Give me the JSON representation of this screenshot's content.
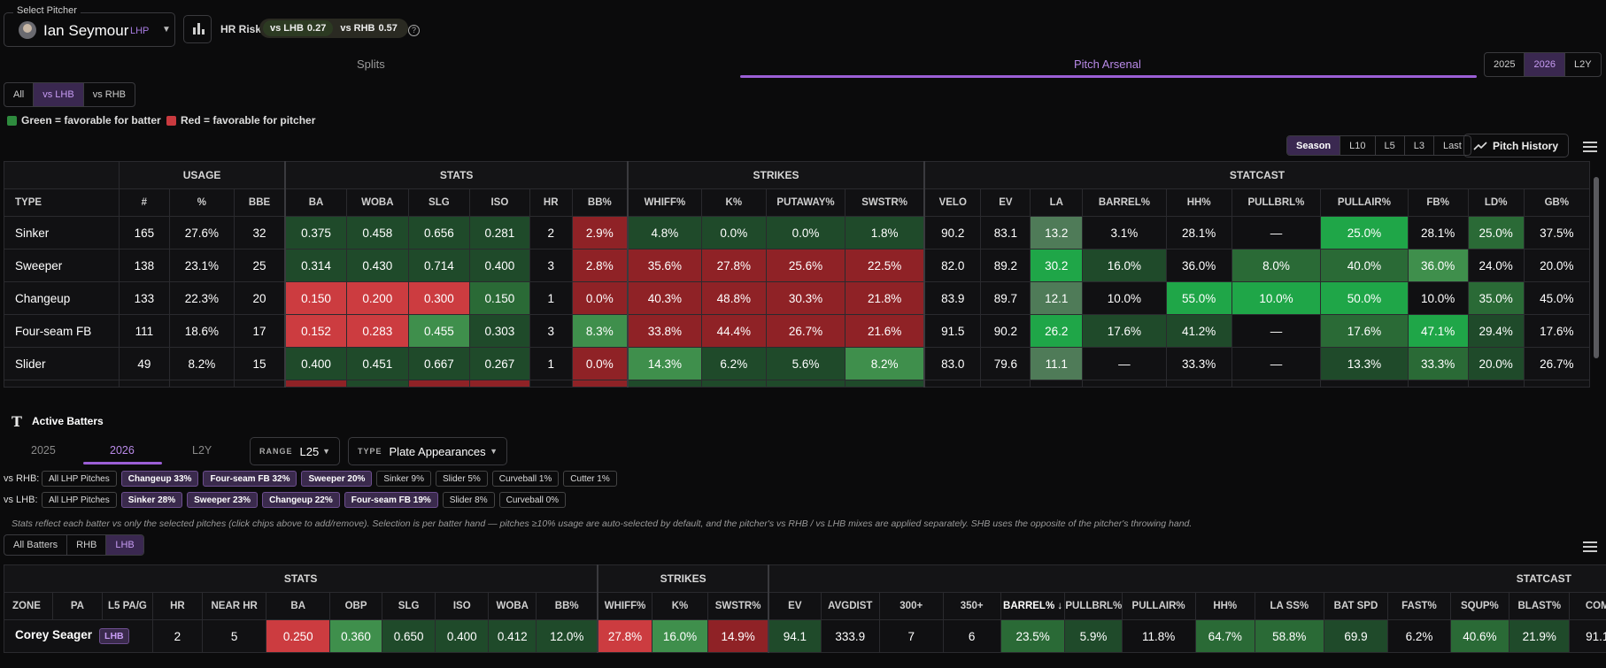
{
  "selector": {
    "legend": "Select Pitcher",
    "name": "Ian Seymour",
    "hand": "LHP"
  },
  "hr_risk": {
    "label": "HR Risk",
    "lhb_label": "vs LHB",
    "lhb_value": "0.27",
    "rhb_label": "vs RHB",
    "rhb_value": "0.57",
    "help": "?"
  },
  "tabs": {
    "splits": "Splits",
    "arsenal": "Pitch Arsenal"
  },
  "years": [
    "2025",
    "2026",
    "L2Y"
  ],
  "hand_filter": [
    "All",
    "vs LHB",
    "vs RHB"
  ],
  "legend": {
    "green": "Green = favorable for batter",
    "red": "Red = favorable for pitcher",
    "green_color": "#2e8b3e",
    "red_color": "#c93a3f"
  },
  "windows": [
    "Season",
    "L10",
    "L5",
    "L3",
    "Last"
  ],
  "pitch_history": "Pitch History",
  "arsenal": {
    "groups": [
      "USAGE",
      "STATS",
      "STRIKES",
      "STATCAST"
    ],
    "headers": [
      "TYPE",
      "#",
      "%",
      "BBE",
      "BA",
      "WOBA",
      "SLG",
      "ISO",
      "HR",
      "BB%",
      "WHIFF%",
      "K%",
      "PUTAWAY%",
      "SWSTR%",
      "VELO",
      "EV",
      "LA",
      "BARREL%",
      "HH%",
      "PULLBRL%",
      "PULLAIR%",
      "FB%",
      "LD%",
      "GB%"
    ],
    "rows": [
      [
        "Sinker",
        "165",
        "27.6%",
        "32",
        "0.375",
        "0.458",
        "0.656",
        "0.281",
        "2",
        "2.9%",
        "4.8%",
        "0.0%",
        "0.0%",
        "1.8%",
        "90.2",
        "83.1",
        "13.2",
        "3.1%",
        "28.1%",
        "—",
        "25.0%",
        "28.1%",
        "25.0%",
        "37.5%"
      ],
      [
        "Sweeper",
        "138",
        "23.1%",
        "25",
        "0.314",
        "0.430",
        "0.714",
        "0.400",
        "3",
        "2.8%",
        "35.6%",
        "27.8%",
        "25.6%",
        "22.5%",
        "82.0",
        "89.2",
        "30.2",
        "16.0%",
        "36.0%",
        "8.0%",
        "40.0%",
        "36.0%",
        "24.0%",
        "20.0%"
      ],
      [
        "Changeup",
        "133",
        "22.3%",
        "20",
        "0.150",
        "0.200",
        "0.300",
        "0.150",
        "1",
        "0.0%",
        "40.3%",
        "48.8%",
        "30.3%",
        "21.8%",
        "83.9",
        "89.7",
        "12.1",
        "10.0%",
        "55.0%",
        "10.0%",
        "50.0%",
        "10.0%",
        "35.0%",
        "45.0%"
      ],
      [
        "Four-seam FB",
        "111",
        "18.6%",
        "17",
        "0.152",
        "0.283",
        "0.455",
        "0.303",
        "3",
        "8.3%",
        "33.8%",
        "44.4%",
        "26.7%",
        "21.6%",
        "91.5",
        "90.2",
        "26.2",
        "17.6%",
        "41.2%",
        "—",
        "17.6%",
        "47.1%",
        "29.4%",
        "17.6%"
      ],
      [
        "Slider",
        "49",
        "8.2%",
        "15",
        "0.400",
        "0.451",
        "0.667",
        "0.267",
        "1",
        "0.0%",
        "14.3%",
        "6.2%",
        "5.6%",
        "8.2%",
        "83.0",
        "79.6",
        "11.1",
        "—",
        "33.3%",
        "—",
        "13.3%",
        "33.3%",
        "20.0%",
        "26.7%"
      ]
    ]
  },
  "batters": {
    "title": "Active Batters",
    "years": [
      "2025",
      "2026",
      "L2Y"
    ],
    "range_key": "RANGE",
    "range_val": "L25",
    "type_key": "TYPE",
    "type_val": "Plate Appearances",
    "rhb_label": "vs RHB:",
    "rhb_chips": [
      "All LHP Pitches",
      "Changeup 33%",
      "Four-seam FB 32%",
      "Sweeper 20%",
      "Sinker 9%",
      "Slider 5%",
      "Curveball 1%",
      "Cutter 1%"
    ],
    "lhb_label": "vs LHB:",
    "lhb_chips": [
      "All LHP Pitches",
      "Sinker 28%",
      "Sweeper 23%",
      "Changeup 22%",
      "Four-seam FB 19%",
      "Slider 8%",
      "Curveball 0%"
    ],
    "note": "Stats reflect each batter vs only the selected pitches (click chips above to add/remove). Selection is per batter hand — pitches ≥10% usage are auto-selected by default, and the pitcher's vs RHB / vs LHB mixes are applied separately. SHB uses the opposite of the pitcher's throwing hand.",
    "filter": [
      "All Batters",
      "RHB",
      "LHB"
    ],
    "groups": [
      "STATS",
      "STRIKES",
      "STATCAST"
    ],
    "headers": [
      "ZONE",
      "PA",
      "L5 PA/G",
      "HR",
      "NEAR HR",
      "BA",
      "OBP",
      "SLG",
      "ISO",
      "WOBA",
      "BB%",
      "WHIFF%",
      "K%",
      "SWSTR%",
      "EV",
      "AVGDIST",
      "300+",
      "350+",
      "BARREL% ↓",
      "PULLBRL%",
      "PULLAIR%",
      "HH%",
      "LA SS%",
      "BAT SPD",
      "FAST%",
      "SQUP%",
      "BLAST%",
      "COM"
    ],
    "row": {
      "name": "Corey Seager",
      "hand": "LHB",
      "values": [
        "2",
        "5",
        "0.250",
        "0.360",
        "0.650",
        "0.400",
        "0.412",
        "12.0%",
        "27.8%",
        "16.0%",
        "14.9%",
        "94.1",
        "333.9",
        "7",
        "6",
        "23.5%",
        "5.9%",
        "11.8%",
        "64.7%",
        "58.8%",
        "69.9",
        "6.2%",
        "40.6%",
        "21.9%",
        "91.1"
      ]
    }
  }
}
